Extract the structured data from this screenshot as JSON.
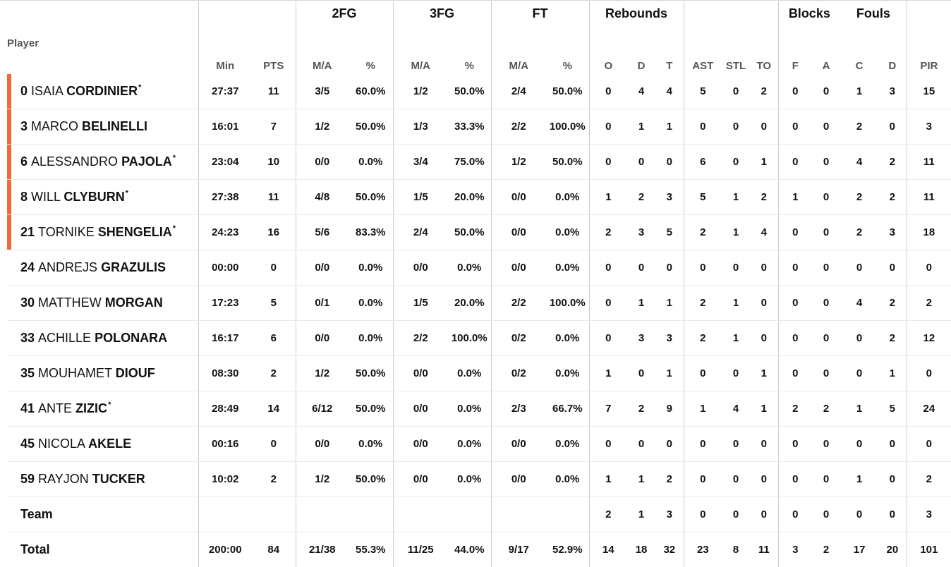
{
  "header": {
    "groups": {
      "fg2": "2FG",
      "fg3": "3FG",
      "ft": "FT",
      "rebounds": "Rebounds",
      "blocks": "Blocks",
      "fouls": "Fouls"
    },
    "columns": {
      "player": "Player",
      "min": "Min",
      "pts": "PTS",
      "fg2_ma": "M/A",
      "fg2_pct": "%",
      "fg3_ma": "M/A",
      "fg3_pct": "%",
      "ft_ma": "M/A",
      "ft_pct": "%",
      "reb_o": "O",
      "reb_d": "D",
      "reb_t": "T",
      "ast": "AST",
      "stl": "STL",
      "to": "TO",
      "blk_f": "F",
      "blk_a": "A",
      "foul_c": "C",
      "foul_d": "D",
      "pir": "PIR"
    }
  },
  "colors": {
    "starter_marker": "#f26a35",
    "row_divider": "#eaeaea",
    "column_divider": "#cccccc",
    "subheader_text": "#555555"
  },
  "players": [
    {
      "num": "0",
      "first": "ISAIA",
      "last": "CORDINIER",
      "star": "*",
      "starter": true,
      "min": "27:37",
      "pts": "11",
      "fg2_ma": "3/5",
      "fg2_pct": "60.0%",
      "fg3_ma": "1/2",
      "fg3_pct": "50.0%",
      "ft_ma": "2/4",
      "ft_pct": "50.0%",
      "reb_o": "0",
      "reb_d": "4",
      "reb_t": "4",
      "ast": "5",
      "stl": "0",
      "to": "2",
      "blk_f": "0",
      "blk_a": "0",
      "foul_c": "1",
      "foul_d": "3",
      "pir": "15"
    },
    {
      "num": "3",
      "first": "MARCO",
      "last": "BELINELLI",
      "star": "",
      "starter": true,
      "min": "16:01",
      "pts": "7",
      "fg2_ma": "1/2",
      "fg2_pct": "50.0%",
      "fg3_ma": "1/3",
      "fg3_pct": "33.3%",
      "ft_ma": "2/2",
      "ft_pct": "100.0%",
      "reb_o": "0",
      "reb_d": "1",
      "reb_t": "1",
      "ast": "0",
      "stl": "0",
      "to": "0",
      "blk_f": "0",
      "blk_a": "0",
      "foul_c": "2",
      "foul_d": "0",
      "pir": "3"
    },
    {
      "num": "6",
      "first": "ALESSANDRO",
      "last": "PAJOLA",
      "star": "*",
      "starter": true,
      "min": "23:04",
      "pts": "10",
      "fg2_ma": "0/0",
      "fg2_pct": "0.0%",
      "fg3_ma": "3/4",
      "fg3_pct": "75.0%",
      "ft_ma": "1/2",
      "ft_pct": "50.0%",
      "reb_o": "0",
      "reb_d": "0",
      "reb_t": "0",
      "ast": "6",
      "stl": "0",
      "to": "1",
      "blk_f": "0",
      "blk_a": "0",
      "foul_c": "4",
      "foul_d": "2",
      "pir": "11"
    },
    {
      "num": "8",
      "first": "WILL",
      "last": "CLYBURN",
      "star": "*",
      "starter": true,
      "min": "27:38",
      "pts": "11",
      "fg2_ma": "4/8",
      "fg2_pct": "50.0%",
      "fg3_ma": "1/5",
      "fg3_pct": "20.0%",
      "ft_ma": "0/0",
      "ft_pct": "0.0%",
      "reb_o": "1",
      "reb_d": "2",
      "reb_t": "3",
      "ast": "5",
      "stl": "1",
      "to": "2",
      "blk_f": "1",
      "blk_a": "0",
      "foul_c": "2",
      "foul_d": "2",
      "pir": "11"
    },
    {
      "num": "21",
      "first": "TORNIKE",
      "last": "SHENGELIA",
      "star": "*",
      "starter": true,
      "min": "24:23",
      "pts": "16",
      "fg2_ma": "5/6",
      "fg2_pct": "83.3%",
      "fg3_ma": "2/4",
      "fg3_pct": "50.0%",
      "ft_ma": "0/0",
      "ft_pct": "0.0%",
      "reb_o": "2",
      "reb_d": "3",
      "reb_t": "5",
      "ast": "2",
      "stl": "1",
      "to": "4",
      "blk_f": "0",
      "blk_a": "0",
      "foul_c": "2",
      "foul_d": "3",
      "pir": "18"
    },
    {
      "num": "24",
      "first": "ANDREJS",
      "last": "GRAZULIS",
      "star": "",
      "starter": false,
      "min": "00:00",
      "pts": "0",
      "fg2_ma": "0/0",
      "fg2_pct": "0.0%",
      "fg3_ma": "0/0",
      "fg3_pct": "0.0%",
      "ft_ma": "0/0",
      "ft_pct": "0.0%",
      "reb_o": "0",
      "reb_d": "0",
      "reb_t": "0",
      "ast": "0",
      "stl": "0",
      "to": "0",
      "blk_f": "0",
      "blk_a": "0",
      "foul_c": "0",
      "foul_d": "0",
      "pir": "0"
    },
    {
      "num": "30",
      "first": "MATTHEW",
      "last": "MORGAN",
      "star": "",
      "starter": false,
      "min": "17:23",
      "pts": "5",
      "fg2_ma": "0/1",
      "fg2_pct": "0.0%",
      "fg3_ma": "1/5",
      "fg3_pct": "20.0%",
      "ft_ma": "2/2",
      "ft_pct": "100.0%",
      "reb_o": "0",
      "reb_d": "1",
      "reb_t": "1",
      "ast": "2",
      "stl": "1",
      "to": "0",
      "blk_f": "0",
      "blk_a": "0",
      "foul_c": "4",
      "foul_d": "2",
      "pir": "2"
    },
    {
      "num": "33",
      "first": "ACHILLE",
      "last": "POLONARA",
      "star": "",
      "starter": false,
      "min": "16:17",
      "pts": "6",
      "fg2_ma": "0/0",
      "fg2_pct": "0.0%",
      "fg3_ma": "2/2",
      "fg3_pct": "100.0%",
      "ft_ma": "0/2",
      "ft_pct": "0.0%",
      "reb_o": "0",
      "reb_d": "3",
      "reb_t": "3",
      "ast": "2",
      "stl": "1",
      "to": "0",
      "blk_f": "0",
      "blk_a": "0",
      "foul_c": "0",
      "foul_d": "2",
      "pir": "12"
    },
    {
      "num": "35",
      "first": "MOUHAMET",
      "last": "DIOUF",
      "star": "",
      "starter": false,
      "min": "08:30",
      "pts": "2",
      "fg2_ma": "1/2",
      "fg2_pct": "50.0%",
      "fg3_ma": "0/0",
      "fg3_pct": "0.0%",
      "ft_ma": "0/2",
      "ft_pct": "0.0%",
      "reb_o": "1",
      "reb_d": "0",
      "reb_t": "1",
      "ast": "0",
      "stl": "0",
      "to": "1",
      "blk_f": "0",
      "blk_a": "0",
      "foul_c": "0",
      "foul_d": "1",
      "pir": "0"
    },
    {
      "num": "41",
      "first": "ANTE",
      "last": "ZIZIC",
      "star": "*",
      "starter": false,
      "min": "28:49",
      "pts": "14",
      "fg2_ma": "6/12",
      "fg2_pct": "50.0%",
      "fg3_ma": "0/0",
      "fg3_pct": "0.0%",
      "ft_ma": "2/3",
      "ft_pct": "66.7%",
      "reb_o": "7",
      "reb_d": "2",
      "reb_t": "9",
      "ast": "1",
      "stl": "4",
      "to": "1",
      "blk_f": "2",
      "blk_a": "2",
      "foul_c": "1",
      "foul_d": "5",
      "pir": "24"
    },
    {
      "num": "45",
      "first": "NICOLA",
      "last": "AKELE",
      "star": "",
      "starter": false,
      "min": "00:16",
      "pts": "0",
      "fg2_ma": "0/0",
      "fg2_pct": "0.0%",
      "fg3_ma": "0/0",
      "fg3_pct": "0.0%",
      "ft_ma": "0/0",
      "ft_pct": "0.0%",
      "reb_o": "0",
      "reb_d": "0",
      "reb_t": "0",
      "ast": "0",
      "stl": "0",
      "to": "0",
      "blk_f": "0",
      "blk_a": "0",
      "foul_c": "0",
      "foul_d": "0",
      "pir": "0"
    },
    {
      "num": "59",
      "first": "RAYJON",
      "last": "TUCKER",
      "star": "",
      "starter": false,
      "min": "10:02",
      "pts": "2",
      "fg2_ma": "1/2",
      "fg2_pct": "50.0%",
      "fg3_ma": "0/0",
      "fg3_pct": "0.0%",
      "ft_ma": "0/0",
      "ft_pct": "0.0%",
      "reb_o": "1",
      "reb_d": "1",
      "reb_t": "2",
      "ast": "0",
      "stl": "0",
      "to": "0",
      "blk_f": "0",
      "blk_a": "0",
      "foul_c": "1",
      "foul_d": "0",
      "pir": "2"
    }
  ],
  "team": {
    "label": "Team",
    "min": "",
    "pts": "",
    "fg2_ma": "",
    "fg2_pct": "",
    "fg3_ma": "",
    "fg3_pct": "",
    "ft_ma": "",
    "ft_pct": "",
    "reb_o": "2",
    "reb_d": "1",
    "reb_t": "3",
    "ast": "0",
    "stl": "0",
    "to": "0",
    "blk_f": "0",
    "blk_a": "0",
    "foul_c": "0",
    "foul_d": "0",
    "pir": "3"
  },
  "total": {
    "label": "Total",
    "min": "200:00",
    "pts": "84",
    "fg2_ma": "21/38",
    "fg2_pct": "55.3%",
    "fg3_ma": "11/25",
    "fg3_pct": "44.0%",
    "ft_ma": "9/17",
    "ft_pct": "52.9%",
    "reb_o": "14",
    "reb_d": "18",
    "reb_t": "32",
    "ast": "23",
    "stl": "8",
    "to": "11",
    "blk_f": "3",
    "blk_a": "2",
    "foul_c": "17",
    "foul_d": "20",
    "pir": "101"
  }
}
